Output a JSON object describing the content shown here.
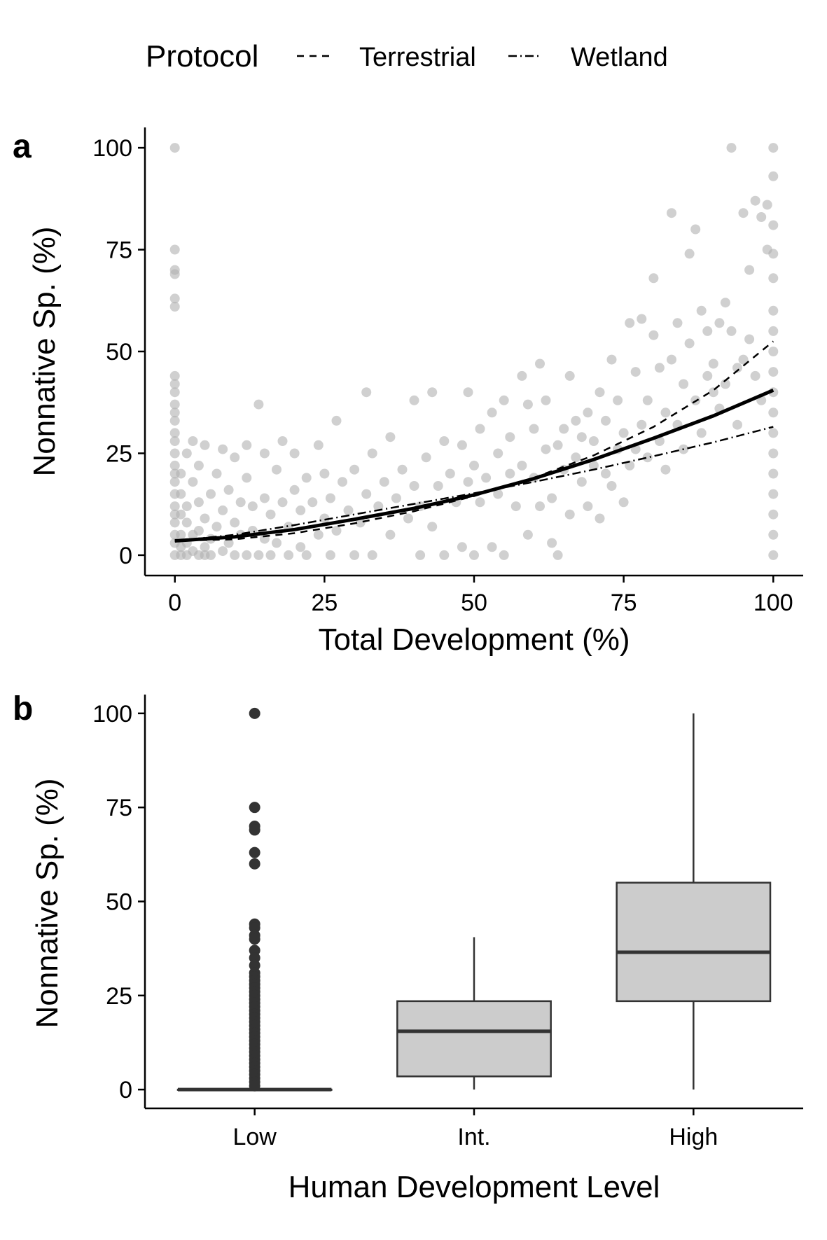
{
  "legend": {
    "title": "Protocol",
    "entries": [
      {
        "label": "Terrestrial",
        "linetype": "dashed"
      },
      {
        "label": "Wetland",
        "linetype": "dotdash"
      }
    ]
  },
  "chart_data": [
    {
      "panel": "a",
      "type": "scatter",
      "xlabel": "Total Development (%)",
      "ylabel": "Nonnative Sp. (%)",
      "xlim": [
        -5,
        105
      ],
      "ylim": [
        -5,
        105
      ],
      "xticks": [
        0,
        25,
        50,
        75,
        100
      ],
      "yticks": [
        0,
        25,
        50,
        75,
        100
      ],
      "point_color": "#b0b0b0",
      "points": [
        [
          0,
          100
        ],
        [
          0,
          75
        ],
        [
          0,
          70
        ],
        [
          0,
          69
        ],
        [
          0,
          63
        ],
        [
          0,
          61
        ],
        [
          0,
          44
        ],
        [
          0,
          42
        ],
        [
          0,
          40
        ],
        [
          0,
          37
        ],
        [
          0,
          35
        ],
        [
          0,
          33
        ],
        [
          0,
          30
        ],
        [
          0,
          28
        ],
        [
          0,
          25
        ],
        [
          0,
          22
        ],
        [
          0,
          20
        ],
        [
          0,
          18
        ],
        [
          0,
          15
        ],
        [
          0,
          12
        ],
        [
          0,
          10
        ],
        [
          0,
          8
        ],
        [
          0,
          5
        ],
        [
          0,
          3
        ],
        [
          0,
          0
        ],
        [
          1,
          2
        ],
        [
          1,
          5
        ],
        [
          1,
          10
        ],
        [
          1,
          15
        ],
        [
          1,
          20
        ],
        [
          1,
          0
        ],
        [
          2,
          3
        ],
        [
          2,
          8
        ],
        [
          2,
          12
        ],
        [
          2,
          25
        ],
        [
          2,
          0
        ],
        [
          3,
          5
        ],
        [
          3,
          1
        ],
        [
          3,
          18
        ],
        [
          3,
          28
        ],
        [
          4,
          0
        ],
        [
          4,
          6
        ],
        [
          4,
          13
        ],
        [
          4,
          22
        ],
        [
          5,
          2
        ],
        [
          5,
          9
        ],
        [
          5,
          27
        ],
        [
          5,
          0
        ],
        [
          6,
          4
        ],
        [
          6,
          15
        ],
        [
          6,
          0
        ],
        [
          7,
          7
        ],
        [
          7,
          20
        ],
        [
          8,
          1
        ],
        [
          8,
          11
        ],
        [
          8,
          26
        ],
        [
          9,
          3
        ],
        [
          9,
          16
        ],
        [
          10,
          0
        ],
        [
          10,
          8
        ],
        [
          10,
          24
        ],
        [
          11,
          5
        ],
        [
          11,
          13
        ],
        [
          12,
          0
        ],
        [
          12,
          19
        ],
        [
          12,
          27
        ],
        [
          13,
          6
        ],
        [
          13,
          12
        ],
        [
          14,
          0
        ],
        [
          14,
          37
        ],
        [
          15,
          4
        ],
        [
          15,
          14
        ],
        [
          15,
          25
        ],
        [
          16,
          0
        ],
        [
          16,
          10
        ],
        [
          17,
          3
        ],
        [
          17,
          21
        ],
        [
          18,
          13
        ],
        [
          18,
          28
        ],
        [
          19,
          0
        ],
        [
          19,
          7
        ],
        [
          20,
          16
        ],
        [
          20,
          25
        ],
        [
          21,
          2
        ],
        [
          21,
          11
        ],
        [
          22,
          0
        ],
        [
          22,
          19
        ],
        [
          23,
          13
        ],
        [
          24,
          5
        ],
        [
          24,
          27
        ],
        [
          25,
          9
        ],
        [
          25,
          20
        ],
        [
          26,
          0
        ],
        [
          26,
          14
        ],
        [
          27,
          33
        ],
        [
          27,
          6
        ],
        [
          28,
          18
        ],
        [
          29,
          11
        ],
        [
          30,
          0
        ],
        [
          30,
          21
        ],
        [
          31,
          8
        ],
        [
          32,
          15
        ],
        [
          32,
          40
        ],
        [
          33,
          0
        ],
        [
          33,
          25
        ],
        [
          34,
          12
        ],
        [
          35,
          18
        ],
        [
          36,
          5
        ],
        [
          36,
          29
        ],
        [
          37,
          14
        ],
        [
          38,
          21
        ],
        [
          39,
          9
        ],
        [
          40,
          38
        ],
        [
          40,
          17
        ],
        [
          41,
          0
        ],
        [
          41,
          12
        ],
        [
          42,
          24
        ],
        [
          43,
          40
        ],
        [
          43,
          7
        ],
        [
          44,
          17
        ],
        [
          45,
          28
        ],
        [
          45,
          0
        ],
        [
          46,
          20
        ],
        [
          47,
          13
        ],
        [
          48,
          27
        ],
        [
          48,
          2
        ],
        [
          49,
          40
        ],
        [
          49,
          18
        ],
        [
          50,
          0
        ],
        [
          50,
          22
        ],
        [
          51,
          31
        ],
        [
          51,
          13
        ],
        [
          52,
          19
        ],
        [
          53,
          35
        ],
        [
          53,
          2
        ],
        [
          54,
          25
        ],
        [
          54,
          15
        ],
        [
          55,
          0
        ],
        [
          55,
          38
        ],
        [
          56,
          20
        ],
        [
          56,
          29
        ],
        [
          57,
          12
        ],
        [
          58,
          22
        ],
        [
          58,
          44
        ],
        [
          59,
          37
        ],
        [
          59,
          5
        ],
        [
          60,
          19
        ],
        [
          60,
          31
        ],
        [
          61,
          47
        ],
        [
          61,
          12
        ],
        [
          62,
          26
        ],
        [
          62,
          38
        ],
        [
          63,
          14
        ],
        [
          63,
          3
        ],
        [
          64,
          27
        ],
        [
          64,
          0
        ],
        [
          65,
          31
        ],
        [
          65,
          21
        ],
        [
          66,
          44
        ],
        [
          66,
          10
        ],
        [
          67,
          24
        ],
        [
          67,
          33
        ],
        [
          68,
          29
        ],
        [
          68,
          18
        ],
        [
          69,
          12
        ],
        [
          69,
          35
        ],
        [
          70,
          22
        ],
        [
          70,
          28
        ],
        [
          71,
          40
        ],
        [
          71,
          9
        ],
        [
          72,
          33
        ],
        [
          72,
          20
        ],
        [
          73,
          17
        ],
        [
          73,
          48
        ],
        [
          74,
          26
        ],
        [
          74,
          38
        ],
        [
          75,
          30
        ],
        [
          75,
          13
        ],
        [
          76,
          57
        ],
        [
          76,
          22
        ],
        [
          77,
          45
        ],
        [
          77,
          26
        ],
        [
          78,
          32
        ],
        [
          78,
          58
        ],
        [
          79,
          38
        ],
        [
          79,
          24
        ],
        [
          80,
          54
        ],
        [
          80,
          68
        ],
        [
          81,
          28
        ],
        [
          81,
          46
        ],
        [
          82,
          35
        ],
        [
          82,
          21
        ],
        [
          83,
          84
        ],
        [
          83,
          48
        ],
        [
          84,
          57
        ],
        [
          84,
          32
        ],
        [
          85,
          42
        ],
        [
          85,
          26
        ],
        [
          86,
          74
        ],
        [
          86,
          52
        ],
        [
          87,
          80
        ],
        [
          87,
          38
        ],
        [
          88,
          60
        ],
        [
          88,
          30
        ],
        [
          89,
          44
        ],
        [
          89,
          55
        ],
        [
          90,
          40
        ],
        [
          90,
          47
        ],
        [
          91,
          57
        ],
        [
          91,
          36
        ],
        [
          92,
          62
        ],
        [
          92,
          42
        ],
        [
          93,
          55
        ],
        [
          93,
          100
        ],
        [
          94,
          46
        ],
        [
          94,
          32
        ],
        [
          95,
          48
        ],
        [
          95,
          84
        ],
        [
          96,
          53
        ],
        [
          96,
          70
        ],
        [
          97,
          87
        ],
        [
          97,
          44
        ],
        [
          98,
          83
        ],
        [
          98,
          38
        ],
        [
          99,
          75
        ],
        [
          99,
          86
        ],
        [
          100,
          100
        ],
        [
          100,
          93
        ],
        [
          100,
          81
        ],
        [
          100,
          74
        ],
        [
          100,
          68
        ],
        [
          100,
          60
        ],
        [
          100,
          55
        ],
        [
          100,
          50
        ],
        [
          100,
          45
        ],
        [
          100,
          40
        ],
        [
          100,
          35
        ],
        [
          100,
          30
        ],
        [
          100,
          25
        ],
        [
          100,
          20
        ],
        [
          100,
          15
        ],
        [
          100,
          10
        ],
        [
          100,
          5
        ],
        [
          100,
          0
        ]
      ],
      "fits": [
        {
          "name": "Overall",
          "linetype": "solid",
          "x": [
            0,
            10,
            20,
            30,
            40,
            50,
            60,
            70,
            80,
            90,
            100
          ],
          "y": [
            3.5,
            4.5,
            6.3,
            8.8,
            11.5,
            14.8,
            18.8,
            23.5,
            28.7,
            34.2,
            40.5
          ]
        },
        {
          "name": "Terrestrial",
          "linetype": "dashed",
          "x": [
            0,
            10,
            20,
            30,
            40,
            50,
            60,
            70,
            80,
            90,
            100
          ],
          "y": [
            3.5,
            3.9,
            5.4,
            7.8,
            10.8,
            14.5,
            19.0,
            24.5,
            31.5,
            40.5,
            52.5
          ]
        },
        {
          "name": "Wetland",
          "linetype": "dotdash",
          "x": [
            0,
            10,
            20,
            30,
            40,
            50,
            60,
            70,
            80,
            90,
            100
          ],
          "y": [
            3.5,
            5.0,
            7.4,
            10.0,
            12.6,
            15.2,
            18.0,
            21.0,
            24.3,
            27.7,
            31.5
          ]
        }
      ]
    },
    {
      "panel": "b",
      "type": "box",
      "xlabel": "Human Development Level",
      "ylabel": "Nonnative Sp. (%)",
      "ylim": [
        -5,
        105
      ],
      "yticks": [
        0,
        25,
        50,
        75,
        100
      ],
      "box_fill": "#cccccc",
      "categories": [
        "Low",
        "Int.",
        "High"
      ],
      "boxes": [
        {
          "category": "Low",
          "min": 0,
          "q1": 0,
          "median": 0,
          "q3": 0,
          "max": 0,
          "outliers": [
            100,
            75,
            70,
            69,
            63,
            60,
            44,
            43,
            41,
            40,
            37,
            35,
            33,
            31,
            30,
            29,
            28,
            27,
            26,
            25,
            24,
            23,
            22,
            21,
            20,
            19,
            18,
            17,
            16,
            15,
            14,
            13,
            12,
            11,
            10,
            9,
            8,
            7,
            6,
            5,
            4,
            3,
            2,
            1
          ]
        },
        {
          "category": "Int.",
          "min": 0,
          "q1": 3.5,
          "median": 15.5,
          "q3": 23.5,
          "max": 40.5,
          "outliers": []
        },
        {
          "category": "High",
          "min": 0,
          "q1": 23.5,
          "median": 36.5,
          "q3": 55,
          "max": 100,
          "outliers": []
        }
      ]
    }
  ]
}
